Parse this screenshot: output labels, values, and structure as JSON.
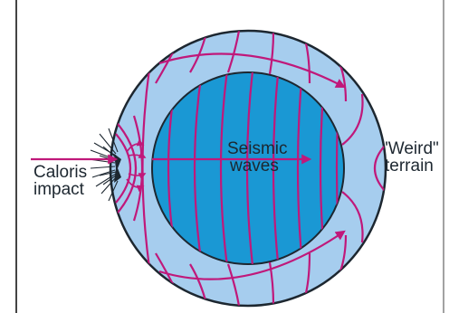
{
  "labels": {
    "impact_line1": "Caloris",
    "impact_line2": "impact",
    "waves_line1": "Seismic",
    "waves_line2": "waves",
    "terrain_line1": "\"Weird\"",
    "terrain_line2": "terrain"
  },
  "colors": {
    "background": "#ffffff",
    "mantle": "#a6cdee",
    "core": "#1a98d4",
    "outline": "#1d2730",
    "wave": "#c0187a",
    "label_text": "#1d2730",
    "frame_line": "#444444"
  }
}
